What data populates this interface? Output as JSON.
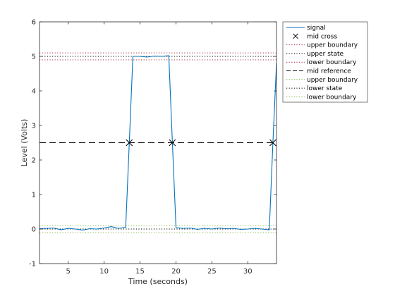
{
  "chart_data": {
    "type": "line",
    "title": "",
    "xlabel": "Time (seconds)",
    "ylabel": "Level (Volts)",
    "xlim": [
      1,
      34
    ],
    "ylim": [
      -1,
      6
    ],
    "xticks": [
      5,
      10,
      15,
      20,
      25,
      30
    ],
    "yticks": [
      -1,
      0,
      1,
      2,
      3,
      4,
      5,
      6
    ],
    "grid": false,
    "legend_position": "outside-top-right",
    "colors": {
      "signal": "#0072BD",
      "upper_boundary": "#A2142F",
      "upper_state": "#000000",
      "lower_boundary": "#77AC30",
      "lower_state": "#000000",
      "mid_reference": "#000000",
      "mid_cross": "#000000"
    },
    "signal": {
      "name": "signal",
      "x": [
        1,
        2,
        3,
        4,
        5,
        6,
        7,
        8,
        9,
        10,
        11,
        12,
        13,
        13.5,
        14,
        15,
        16,
        17,
        18,
        19,
        19.5,
        20,
        21,
        22,
        23,
        24,
        25,
        26,
        27,
        28,
        29,
        30,
        31,
        32,
        33,
        33.5,
        34
      ],
      "y": [
        0.01,
        0.02,
        0.03,
        -0.02,
        0.02,
        0.0,
        -0.03,
        0.01,
        0.0,
        0.03,
        0.07,
        0.02,
        0.05,
        2.5,
        5.0,
        5.0,
        4.98,
        5.01,
        5.0,
        5.02,
        2.5,
        0.04,
        0.02,
        0.03,
        -0.01,
        0.02,
        0.0,
        0.03,
        0.01,
        0.02,
        -0.01,
        0.0,
        0.02,
        0.0,
        -0.02,
        2.5,
        4.8
      ]
    },
    "mid_cross": {
      "name": "mid cross",
      "x": [
        13.5,
        19.5,
        33.5
      ],
      "y": [
        2.5,
        2.5,
        2.5
      ]
    },
    "reference_lines": [
      {
        "name": "upper boundary",
        "y": 5.1,
        "style": "dotted",
        "color_key": "upper_boundary"
      },
      {
        "name": "upper state",
        "y": 5.0,
        "style": "dotted",
        "color_key": "upper_state"
      },
      {
        "name": "lower boundary",
        "y": 4.9,
        "style": "dotted",
        "color_key": "upper_boundary"
      },
      {
        "name": "mid reference",
        "y": 2.5,
        "style": "dashed",
        "color_key": "mid_reference"
      },
      {
        "name": "upper boundary",
        "y": 0.1,
        "style": "dotted",
        "color_key": "lower_boundary"
      },
      {
        "name": "lower state",
        "y": 0.0,
        "style": "dotted",
        "color_key": "lower_state"
      },
      {
        "name": "lower boundary",
        "y": -0.1,
        "style": "dotted",
        "color_key": "lower_boundary"
      }
    ],
    "legend": [
      {
        "label": "signal",
        "marker": "line-solid",
        "color_key": "signal"
      },
      {
        "label": "mid cross",
        "marker": "x",
        "color_key": "mid_cross"
      },
      {
        "label": "upper boundary",
        "marker": "line-dotted",
        "color_key": "upper_boundary"
      },
      {
        "label": "upper state",
        "marker": "line-dotted",
        "color_key": "upper_state"
      },
      {
        "label": "lower boundary",
        "marker": "line-dotted",
        "color_key": "upper_boundary"
      },
      {
        "label": "mid reference",
        "marker": "line-dashed",
        "color_key": "mid_reference"
      },
      {
        "label": "upper boundary",
        "marker": "line-dotted",
        "color_key": "lower_boundary"
      },
      {
        "label": "lower state",
        "marker": "line-dotted",
        "color_key": "lower_state"
      },
      {
        "label": "lower boundary",
        "marker": "line-dotted",
        "color_key": "lower_boundary"
      }
    ]
  }
}
